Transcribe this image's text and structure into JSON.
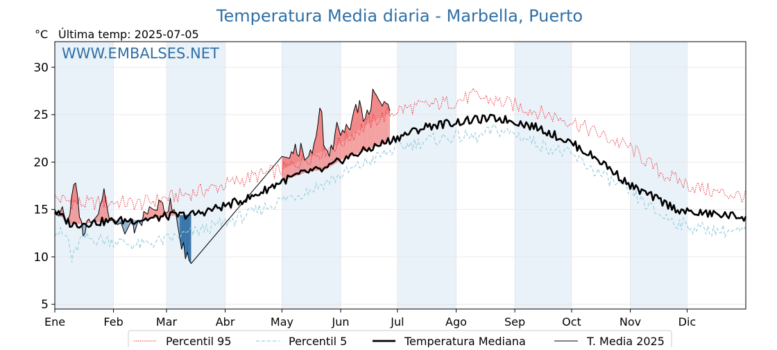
{
  "chart_data": {
    "type": "line",
    "title": "Temperatura Media diaria - Marbella, Puerto",
    "unit": "°C",
    "subtitle": "Última temp: 2025-07-05",
    "watermark": "WWW.EMBALSES.NET",
    "ylim": [
      4.5,
      32.7
    ],
    "yticks": [
      5,
      10,
      15,
      20,
      25,
      30
    ],
    "xlim": [
      1,
      366
    ],
    "months": [
      {
        "label": "Ene",
        "day": 1
      },
      {
        "label": "Feb",
        "day": 32
      },
      {
        "label": "Mar",
        "day": 60
      },
      {
        "label": "Abr",
        "day": 91
      },
      {
        "label": "May",
        "day": 121
      },
      {
        "label": "Jun",
        "day": 152
      },
      {
        "label": "Jul",
        "day": 182
      },
      {
        "label": "Ago",
        "day": 213
      },
      {
        "label": "Sep",
        "day": 244
      },
      {
        "label": "Oct",
        "day": 274
      },
      {
        "label": "Nov",
        "day": 305
      },
      {
        "label": "Dic",
        "day": 335
      }
    ],
    "colors": {
      "p95": "#e8212b",
      "p5": "#9ccfdf",
      "median": "#000000",
      "current": "#000000",
      "above_fill": "#f08080",
      "below_fill_light": "#8fb3d4",
      "below_fill_dark": "#2e6da4",
      "title": "#2f6fa5",
      "band": "#eaf2f9"
    },
    "grid": true,
    "legend_position": "bottom",
    "series": [
      {
        "name": "Percentil 95",
        "style": "dotted-red",
        "points": [
          [
            1,
            16.2
          ],
          [
            15,
            15.6
          ],
          [
            32,
            15.8
          ],
          [
            45,
            15.6
          ],
          [
            60,
            16.2
          ],
          [
            75,
            16.8
          ],
          [
            91,
            17.6
          ],
          [
            105,
            18.4
          ],
          [
            121,
            19.2
          ],
          [
            135,
            20.5
          ],
          [
            152,
            22.0
          ],
          [
            166,
            24.0
          ],
          [
            182,
            25.5
          ],
          [
            198,
            26.0
          ],
          [
            213,
            26.4
          ],
          [
            222,
            27.0
          ],
          [
            232,
            26.5
          ],
          [
            244,
            26.0
          ],
          [
            258,
            25.2
          ],
          [
            274,
            24.3
          ],
          [
            290,
            22.8
          ],
          [
            305,
            21.5
          ],
          [
            320,
            19.0
          ],
          [
            335,
            17.6
          ],
          [
            350,
            16.8
          ],
          [
            366,
            16.4
          ]
        ]
      },
      {
        "name": "Percentil 5",
        "style": "dashed-lightblue",
        "points": [
          [
            1,
            12.8
          ],
          [
            8,
            12.0
          ],
          [
            10,
            9.6
          ],
          [
            15,
            12.0
          ],
          [
            32,
            11.7
          ],
          [
            45,
            11.2
          ],
          [
            55,
            11.6
          ],
          [
            60,
            11.8
          ],
          [
            75,
            12.6
          ],
          [
            91,
            13.6
          ],
          [
            105,
            14.6
          ],
          [
            121,
            16.0
          ],
          [
            135,
            17.0
          ],
          [
            152,
            18.6
          ],
          [
            166,
            20.0
          ],
          [
            182,
            21.5
          ],
          [
            198,
            22.3
          ],
          [
            213,
            22.7
          ],
          [
            225,
            22.6
          ],
          [
            233,
            23.4
          ],
          [
            244,
            23.0
          ],
          [
            258,
            21.8
          ],
          [
            274,
            20.7
          ],
          [
            290,
            18.6
          ],
          [
            305,
            16.8
          ],
          [
            320,
            14.5
          ],
          [
            335,
            13.2
          ],
          [
            350,
            12.8
          ],
          [
            366,
            12.6
          ]
        ]
      },
      {
        "name": "Temperatura Mediana",
        "style": "solid-black-thick",
        "points": [
          [
            1,
            14.8
          ],
          [
            10,
            13.4
          ],
          [
            20,
            13.6
          ],
          [
            32,
            13.8
          ],
          [
            45,
            13.9
          ],
          [
            55,
            14.1
          ],
          [
            60,
            14.3
          ],
          [
            75,
            14.5
          ],
          [
            91,
            15.4
          ],
          [
            105,
            16.3
          ],
          [
            121,
            18.0
          ],
          [
            135,
            19.0
          ],
          [
            144,
            19.2
          ],
          [
            152,
            20.2
          ],
          [
            166,
            21.3
          ],
          [
            182,
            22.6
          ],
          [
            198,
            23.8
          ],
          [
            213,
            24.2
          ],
          [
            225,
            24.5
          ],
          [
            235,
            24.6
          ],
          [
            244,
            24.3
          ],
          [
            258,
            23.5
          ],
          [
            274,
            22.0
          ],
          [
            290,
            20.0
          ],
          [
            305,
            17.5
          ],
          [
            320,
            16.0
          ],
          [
            330,
            15.0
          ],
          [
            335,
            14.7
          ],
          [
            350,
            14.5
          ],
          [
            366,
            14.2
          ]
        ]
      },
      {
        "name": "T. Media 2025",
        "style": "solid-black-thin",
        "points": [
          [
            1,
            15.0
          ],
          [
            3,
            14.3
          ],
          [
            5,
            15.3
          ],
          [
            7,
            13.4
          ],
          [
            9,
            14.5
          ],
          [
            10,
            16.5
          ],
          [
            11,
            17.6
          ],
          [
            12,
            17.8
          ],
          [
            13,
            16.5
          ],
          [
            14,
            14.2
          ],
          [
            15,
            13.8
          ],
          [
            16,
            12.2
          ],
          [
            17,
            12.5
          ],
          [
            18,
            13.8
          ],
          [
            19,
            14.0
          ],
          [
            20,
            13.6
          ],
          [
            22,
            14.0
          ],
          [
            24,
            14.5
          ],
          [
            25,
            15.5
          ],
          [
            26,
            16.0
          ],
          [
            27,
            17.2
          ],
          [
            28,
            15.8
          ],
          [
            30,
            13.8
          ],
          [
            32,
            14.0
          ],
          [
            34,
            13.4
          ],
          [
            36,
            13.6
          ],
          [
            38,
            12.4
          ],
          [
            40,
            13.2
          ],
          [
            42,
            14.0
          ],
          [
            43,
            12.5
          ],
          [
            45,
            13.8
          ],
          [
            47,
            13.3
          ],
          [
            48,
            14.8
          ],
          [
            50,
            14.5
          ],
          [
            51,
            15.3
          ],
          [
            53,
            15.0
          ],
          [
            55,
            14.9
          ],
          [
            56,
            16.0
          ],
          [
            58,
            15.7
          ],
          [
            59,
            14.5
          ],
          [
            61,
            14.8
          ],
          [
            62,
            16.2
          ],
          [
            63,
            14.8
          ],
          [
            64,
            15.0
          ],
          [
            65,
            14.5
          ],
          [
            66,
            13.2
          ],
          [
            67,
            12.0
          ],
          [
            68,
            10.8
          ],
          [
            69,
            11.5
          ],
          [
            70,
            9.8
          ],
          [
            71,
            10.5
          ],
          [
            72,
            9.6
          ],
          [
            73,
            9.3
          ],
          [
            121,
            20.6
          ],
          [
            125,
            20.4
          ],
          [
            126,
            21.1
          ],
          [
            127,
            20.9
          ],
          [
            128,
            21.9
          ],
          [
            129,
            20.8
          ],
          [
            130,
            20.6
          ],
          [
            131,
            22.0
          ],
          [
            132,
            21.1
          ],
          [
            133,
            20.2
          ],
          [
            135,
            20.6
          ],
          [
            136,
            21.3
          ],
          [
            137,
            20.9
          ],
          [
            138,
            22.0
          ],
          [
            139,
            22.7
          ],
          [
            140,
            24.0
          ],
          [
            141,
            25.7
          ],
          [
            142,
            25.3
          ],
          [
            143,
            21.8
          ],
          [
            144,
            21.4
          ],
          [
            145,
            21.2
          ],
          [
            146,
            20.6
          ],
          [
            147,
            21.8
          ],
          [
            148,
            21.3
          ],
          [
            149,
            23.0
          ],
          [
            150,
            24.2
          ],
          [
            151,
            23.5
          ],
          [
            152,
            22.8
          ],
          [
            153,
            23.4
          ],
          [
            154,
            23.1
          ],
          [
            155,
            24.0
          ],
          [
            156,
            23.6
          ],
          [
            157,
            23.4
          ],
          [
            158,
            24.5
          ],
          [
            159,
            25.4
          ],
          [
            160,
            26.1
          ],
          [
            161,
            25.2
          ],
          [
            162,
            26.5
          ],
          [
            163,
            25.6
          ],
          [
            164,
            24.3
          ],
          [
            165,
            24.6
          ],
          [
            166,
            25.5
          ],
          [
            167,
            25.0
          ],
          [
            168,
            25.6
          ],
          [
            169,
            27.7
          ],
          [
            170,
            27.3
          ],
          [
            171,
            27.0
          ],
          [
            172,
            26.6
          ],
          [
            173,
            26.3
          ],
          [
            174,
            25.9
          ],
          [
            175,
            26.4
          ],
          [
            176,
            26.2
          ],
          [
            177,
            26.1
          ],
          [
            178,
            25.4
          ]
        ]
      }
    ]
  },
  "legend": {
    "p95": "Percentil 95",
    "p5": "Percentil 5",
    "median": "Temperatura Mediana",
    "current": "T. Media 2025"
  }
}
